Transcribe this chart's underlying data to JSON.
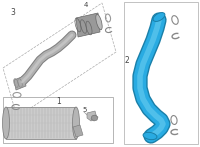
{
  "tube_color": "#29abe2",
  "tube_dark": "#1a7fa8",
  "tube_highlight": "#7ed9f5",
  "gray_hose": "#b0b0b0",
  "gray_hose_dark": "#808080",
  "gray_connector": "#999999",
  "gray_connector_dark": "#666666",
  "clip_color": "#888888",
  "box_edge": "#aaaaaa",
  "label_color": "#444444",
  "white": "#ffffff",
  "intercooler_fill": "#cccccc",
  "intercooler_edge": "#888888",
  "label1": "1",
  "label2": "2",
  "label3": "3",
  "label4": "4",
  "label5": "5"
}
